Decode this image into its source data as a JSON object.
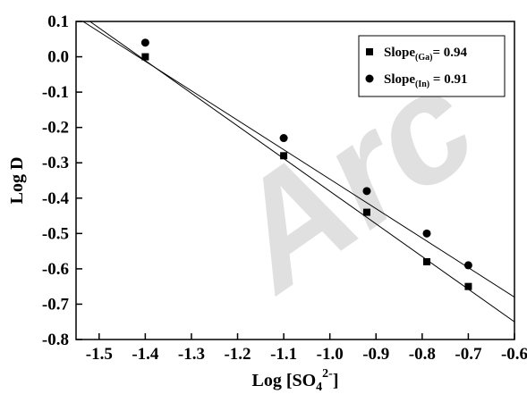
{
  "watermark": "Arc",
  "chart_data": {
    "type": "scatter",
    "xlabel": {
      "main": "Log [SO",
      "sub": "4",
      "sup": "2-",
      "tail": "]"
    },
    "ylabel": "Log D",
    "xlim": [
      -1.55,
      -0.6
    ],
    "ylim": [
      -0.8,
      0.1
    ],
    "xticks": [
      "-1.5",
      "-1.4",
      "-1.3",
      "-1.2",
      "-1.1",
      "-1.0",
      "-0.9",
      "-0.8",
      "-0.7",
      "-0.6"
    ],
    "yticks": [
      "0.1",
      "0.0",
      "-0.1",
      "-0.2",
      "-0.3",
      "-0.4",
      "-0.5",
      "-0.6",
      "-0.7",
      "-0.8"
    ],
    "legend_position": "top-right",
    "series": [
      {
        "key": "ga",
        "marker": "square",
        "legend": {
          "main": "Slope",
          "sub": "(Ga)",
          "tail": "= 0.94"
        },
        "x": [
          -1.4,
          -1.1,
          -0.92,
          -0.79,
          -0.7
        ],
        "y": [
          0.0,
          -0.28,
          -0.44,
          -0.58,
          -0.65
        ],
        "fit_line": {
          "x": [
            -1.52,
            -0.6
          ],
          "y": [
            0.1,
            -0.75
          ]
        }
      },
      {
        "key": "in",
        "marker": "circle",
        "legend": {
          "main": "Slope",
          "sub": "(In)",
          "tail": " = 0.91"
        },
        "x": [
          -1.4,
          -1.1,
          -0.92,
          -0.79,
          -0.7
        ],
        "y": [
          0.04,
          -0.23,
          -0.38,
          -0.5,
          -0.59
        ],
        "fit_line": {
          "x": [
            -1.535,
            -0.6
          ],
          "y": [
            0.1,
            -0.68
          ]
        }
      }
    ]
  }
}
